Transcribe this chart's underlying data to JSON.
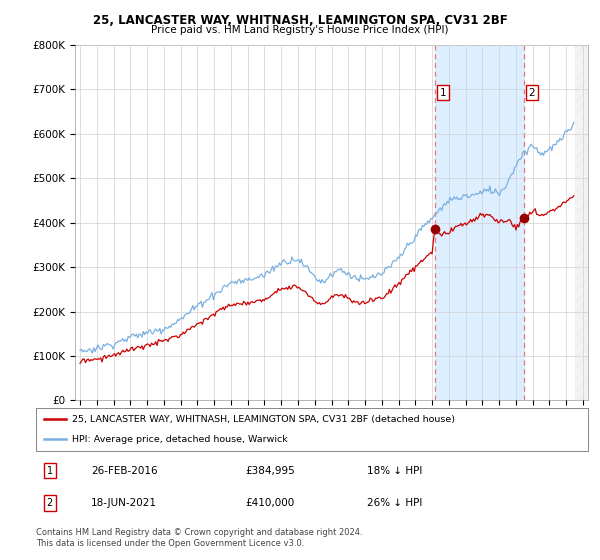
{
  "title1": "25, LANCASTER WAY, WHITNASH, LEAMINGTON SPA, CV31 2BF",
  "title2": "Price paid vs. HM Land Registry's House Price Index (HPI)",
  "ylim": [
    0,
    800000
  ],
  "yticks": [
    0,
    100000,
    200000,
    300000,
    400000,
    500000,
    600000,
    700000,
    800000
  ],
  "ytick_labels": [
    "£0",
    "£100K",
    "£200K",
    "£300K",
    "£400K",
    "£500K",
    "£600K",
    "£700K",
    "£800K"
  ],
  "hpi_color": "#7ab0e0",
  "price_color": "#cc0000",
  "dashed_line_color": "#e87878",
  "fill_color": "#ddeeff",
  "marker1_x": 2016.15,
  "marker1_y": 384995,
  "marker2_x": 2021.46,
  "marker2_y": 410000,
  "xlim_start": 1994.7,
  "xlim_end": 2025.3,
  "legend_label1": "25, LANCASTER WAY, WHITNASH, LEAMINGTON SPA, CV31 2BF (detached house)",
  "legend_label2": "HPI: Average price, detached house, Warwick",
  "ann1_label": "1",
  "ann1_date": "26-FEB-2016",
  "ann1_price": "£384,995",
  "ann1_pct": "18% ↓ HPI",
  "ann2_label": "2",
  "ann2_date": "18-JUN-2021",
  "ann2_price": "£410,000",
  "ann2_pct": "26% ↓ HPI",
  "footer": "Contains HM Land Registry data © Crown copyright and database right 2024.\nThis data is licensed under the Open Government Licence v3.0.",
  "bg_color": "#ffffff",
  "grid_color": "#d0d0d0",
  "hatch_start": 2024.5
}
